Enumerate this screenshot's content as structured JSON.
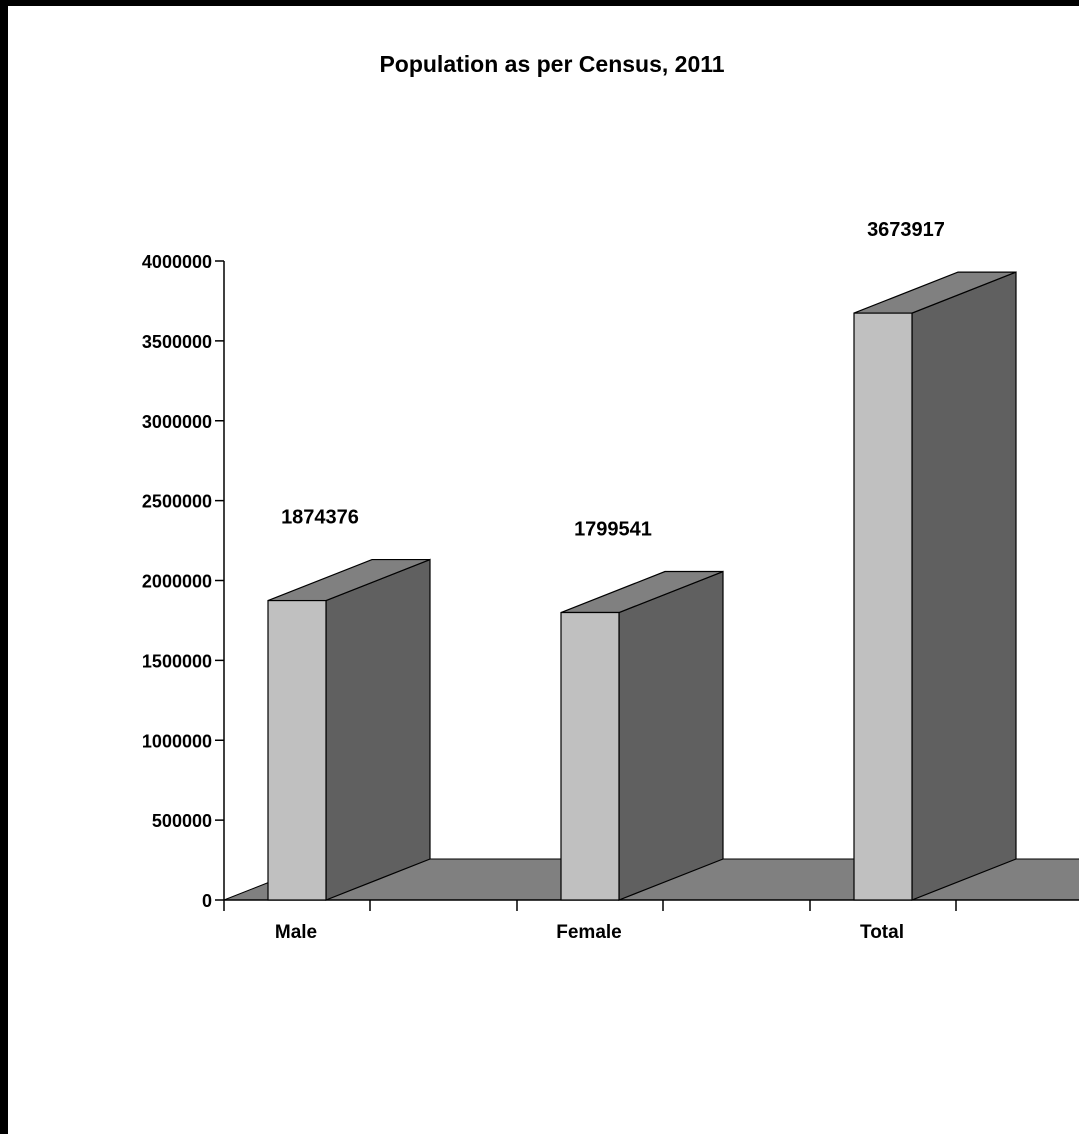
{
  "chart_data": {
    "type": "bar",
    "title": "Population as per Census, 2011",
    "xlabel": "",
    "ylabel": "",
    "categories": [
      "Male",
      "Female",
      "Total"
    ],
    "values": [
      1874376,
      1799541,
      3673917
    ],
    "data_labels": [
      "1874376",
      "1799541",
      "3673917"
    ],
    "ylim": [
      0,
      4000000
    ],
    "y_ticks": [
      0,
      500000,
      1000000,
      1500000,
      2000000,
      2500000,
      3000000,
      3500000,
      4000000
    ],
    "y_tick_labels": [
      "0",
      "500000",
      "1000000",
      "1500000",
      "2000000",
      "2500000",
      "3000000",
      "3500000",
      "4000000"
    ],
    "grid": false,
    "legend": "none",
    "style": "3d",
    "colors": {
      "bar_front": "#c0c0c0",
      "bar_side": "#606060",
      "bar_top": "#808080",
      "floor": "#808080",
      "axis": "#000000"
    }
  }
}
